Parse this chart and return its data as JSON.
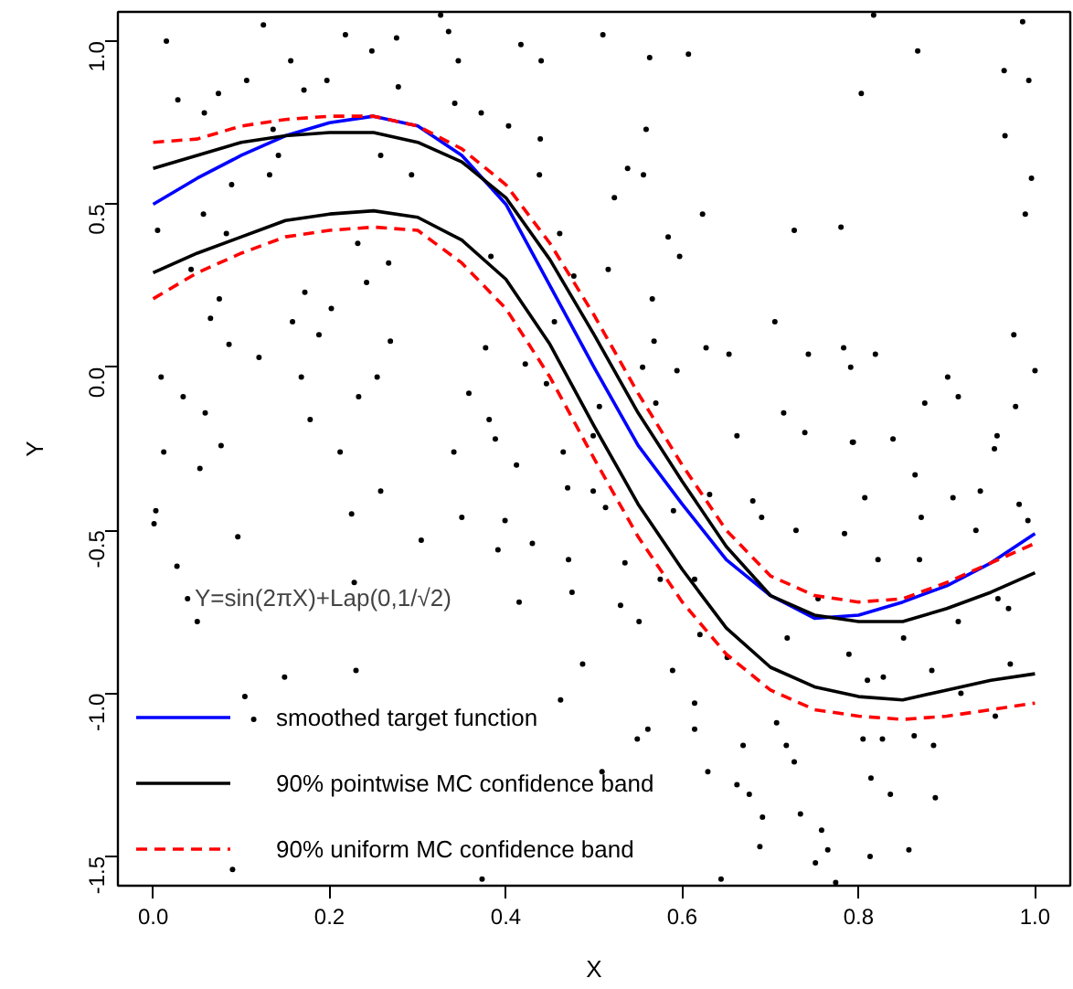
{
  "chart_data": {
    "type": "line",
    "xlabel": "X",
    "ylabel": "Y",
    "xlim": [
      -0.04,
      1.04
    ],
    "ylim": [
      -1.59,
      1.09
    ],
    "xticks": [
      {
        "value": 0,
        "label": "0.0"
      },
      0.2,
      0.4,
      0.6,
      0.8,
      {
        "value": 1,
        "label": "1.0"
      }
    ],
    "yticks": [
      {
        "value": -1.5,
        "label": "-1.5"
      },
      {
        "value": -1,
        "label": "-1.0"
      },
      {
        "value": -0.5,
        "label": "-0.5"
      },
      {
        "value": 0,
        "label": "0.0"
      },
      0.5,
      {
        "value": 1,
        "label": "1.0"
      }
    ],
    "grid": false,
    "legend": "bottom left",
    "annotations": [
      "Y=sin(2πX)+Lap(0,1/√2)"
    ],
    "x": [
      0,
      0.05,
      0.1,
      0.15,
      0.2,
      0.25,
      0.3,
      0.35,
      0.4,
      0.45,
      0.5,
      0.55,
      0.6,
      0.65,
      0.7,
      0.75,
      0.8,
      0.85,
      0.9,
      0.95,
      1.0
    ],
    "series": [
      {
        "type": "scatter",
        "marker": "circle",
        "color": "#000000",
        "x": [
          0.015,
          0.125,
          0.218,
          0.326,
          0.335,
          0.276,
          0.248,
          0.346,
          0.156,
          0.417,
          0.44,
          0.106,
          0.197,
          0.028,
          0.074,
          0.171,
          0.278,
          0.342,
          0.058,
          0.372,
          0.136,
          0.403,
          0.439,
          0.142,
          0.258,
          0.132,
          0.293,
          0.438,
          0.089,
          0.057,
          0.005,
          0.083,
          0.232,
          0.461,
          0.383,
          0.267,
          0.043,
          0.477,
          0.242,
          0.172,
          0.075,
          0.202,
          0.065,
          0.158,
          0.455,
          0.188,
          0.086,
          0.269,
          0.12,
          0.377,
          0.422,
          0.168,
          0.254,
          0.446,
          0.009,
          0.034,
          0.233,
          0.358,
          0.059,
          0.178,
          0.381,
          0.388,
          0.012,
          0.077,
          0.212,
          0.341,
          0.465,
          0.51,
          0.563,
          0.607,
          0.559,
          0.538,
          0.556,
          0.523,
          0.623,
          0.584,
          0.597,
          0.516,
          0.566,
          0.568,
          0.555,
          0.594,
          0.57,
          0.506,
          0.499,
          0.662,
          0.627,
          0.653,
          0.705,
          0.727,
          0.78,
          0.817,
          0.867,
          0.803,
          0.986,
          0.965,
          0.993,
          0.966,
          0.996,
          0.989,
          0.976,
          1.0,
          0.743,
          0.783,
          0.791,
          0.819,
          0.715,
          0.739,
          0.794,
          0.839,
          0.875,
          0.901,
          0.913,
          0.978,
          0.957,
          0.053,
          0.412,
          0.003,
          0.001,
          0.096,
          0.225,
          0.258,
          0.35,
          0.399,
          0.304,
          0.391,
          0.43,
          0.47,
          0.027,
          0.471,
          0.475,
          0.228,
          0.039,
          0.05,
          0.415,
          0.149,
          0.23,
          0.487,
          0.104,
          0.114,
          0.462,
          0.09,
          0.373,
          0.499,
          0.513,
          0.535,
          0.53,
          0.551,
          0.575,
          0.59,
          0.631,
          0.68,
          0.69,
          0.729,
          0.784,
          0.793,
          0.807,
          0.871,
          0.822,
          0.869,
          0.864,
          0.907,
          0.954,
          0.938,
          0.982,
          0.933,
          0.992,
          0.614,
          0.62,
          0.651,
          0.719,
          0.589,
          0.754,
          0.789,
          0.851,
          0.828,
          0.81,
          0.883,
          0.913,
          0.958,
          0.97,
          0.972,
          0.916,
          0.955,
          0.614,
          0.561,
          0.614,
          0.549,
          0.509,
          0.669,
          0.707,
          0.718,
          0.727,
          0.629,
          0.662,
          0.676,
          0.691,
          0.734,
          0.758,
          0.765,
          0.751,
          0.688,
          0.805,
          0.827,
          0.814,
          0.836,
          0.863,
          0.885,
          0.887,
          0.813,
          0.857,
          0.644,
          0.774
        ],
        "values": [
          1.0,
          1.05,
          1.02,
          1.08,
          1.03,
          1.01,
          0.97,
          0.94,
          0.94,
          0.99,
          0.94,
          0.88,
          0.88,
          0.82,
          0.84,
          0.85,
          0.86,
          0.81,
          0.78,
          0.78,
          0.73,
          0.74,
          0.7,
          0.65,
          0.65,
          0.59,
          0.59,
          0.59,
          0.56,
          0.47,
          0.42,
          0.41,
          0.38,
          0.41,
          0.34,
          0.32,
          0.3,
          0.28,
          0.26,
          0.23,
          0.21,
          0.18,
          0.15,
          0.14,
          0.14,
          0.1,
          0.07,
          0.08,
          0.03,
          0.06,
          0.01,
          -0.03,
          -0.03,
          -0.05,
          -0.03,
          -0.09,
          -0.09,
          -0.08,
          -0.14,
          -0.16,
          -0.16,
          -0.22,
          -0.26,
          -0.24,
          -0.26,
          -0.26,
          -0.26,
          1.02,
          0.95,
          0.96,
          0.73,
          0.61,
          0.59,
          0.52,
          0.47,
          0.4,
          0.34,
          0.3,
          0.21,
          0.08,
          0.0,
          -0.01,
          -0.11,
          -0.12,
          -0.21,
          -0.21,
          0.06,
          0.04,
          0.14,
          0.42,
          0.43,
          1.08,
          0.97,
          0.84,
          1.06,
          0.91,
          0.88,
          0.71,
          0.58,
          0.47,
          0.1,
          -0.01,
          0.04,
          0.06,
          0.0,
          0.04,
          -0.14,
          -0.2,
          -0.23,
          -0.22,
          -0.11,
          -0.03,
          -0.09,
          -0.12,
          -0.21,
          -0.31,
          -0.3,
          -0.44,
          -0.48,
          -0.52,
          -0.45,
          -0.38,
          -0.46,
          -0.47,
          -0.53,
          -0.56,
          -0.54,
          -0.37,
          -0.61,
          -0.59,
          -0.69,
          -0.66,
          -0.71,
          -0.78,
          -0.72,
          -0.95,
          -0.93,
          -0.91,
          -1.01,
          -1.08,
          -1.02,
          -1.54,
          -1.57,
          -0.38,
          -0.43,
          -0.6,
          -0.73,
          -0.78,
          -0.65,
          -0.44,
          -0.39,
          -0.41,
          -0.46,
          -0.5,
          -0.51,
          -0.23,
          -0.4,
          -0.46,
          -0.59,
          -0.59,
          -0.33,
          -0.4,
          -0.25,
          -0.38,
          -0.42,
          -0.5,
          -0.47,
          -0.65,
          -0.82,
          -0.89,
          -0.83,
          -0.93,
          -0.71,
          -0.88,
          -0.83,
          -0.95,
          -0.96,
          -0.93,
          -0.78,
          -0.71,
          -0.74,
          -0.91,
          -1.0,
          -1.07,
          -1.03,
          -1.11,
          -1.11,
          -1.14,
          -1.24,
          -1.16,
          -1.09,
          -1.16,
          -1.21,
          -1.24,
          -1.28,
          -1.31,
          -1.38,
          -1.37,
          -1.42,
          -1.48,
          -1.52,
          -1.47,
          -1.14,
          -1.14,
          -1.26,
          -1.31,
          -1.13,
          -1.16,
          -1.32,
          -1.5,
          -1.48,
          -1.57,
          -1.58
        ]
      },
      {
        "name": "smoothed target function",
        "color": "#0000ff",
        "line_style": "solid",
        "values": [
          0.5,
          0.58,
          0.65,
          0.71,
          0.75,
          0.77,
          0.74,
          0.65,
          0.5,
          0.25,
          0.0,
          -0.24,
          -0.42,
          -0.59,
          -0.7,
          -0.77,
          -0.76,
          -0.72,
          -0.67,
          -0.6,
          -0.51
        ]
      },
      {
        "name": "90% pointwise MC confidence band",
        "color": "#000000",
        "line_style": "solid",
        "values": [
          0.61,
          0.65,
          0.69,
          0.71,
          0.72,
          0.72,
          0.69,
          0.63,
          0.52,
          0.33,
          0.1,
          -0.14,
          -0.35,
          -0.55,
          -0.7,
          -0.76,
          -0.78,
          -0.78,
          -0.74,
          -0.69,
          -0.63
        ]
      },
      {
        "color": "#000000",
        "line_style": "solid",
        "values": [
          0.29,
          0.35,
          0.4,
          0.45,
          0.47,
          0.48,
          0.46,
          0.39,
          0.27,
          0.07,
          -0.18,
          -0.42,
          -0.62,
          -0.8,
          -0.92,
          -0.98,
          -1.01,
          -1.02,
          -0.99,
          -0.96,
          -0.94
        ]
      },
      {
        "name": "90% uniform MC confidence band",
        "color": "#ff0000",
        "line_style": "dashed",
        "values": [
          0.69,
          0.7,
          0.74,
          0.76,
          0.77,
          0.77,
          0.74,
          0.67,
          0.56,
          0.38,
          0.16,
          -0.08,
          -0.3,
          -0.5,
          -0.64,
          -0.7,
          -0.72,
          -0.71,
          -0.66,
          -0.6,
          -0.54
        ]
      },
      {
        "color": "#ff0000",
        "line_style": "dashed",
        "values": [
          0.21,
          0.29,
          0.35,
          0.4,
          0.42,
          0.43,
          0.42,
          0.32,
          0.18,
          -0.03,
          -0.28,
          -0.52,
          -0.72,
          -0.88,
          -0.99,
          -1.05,
          -1.07,
          -1.08,
          -1.07,
          -1.05,
          -1.03
        ]
      }
    ]
  }
}
